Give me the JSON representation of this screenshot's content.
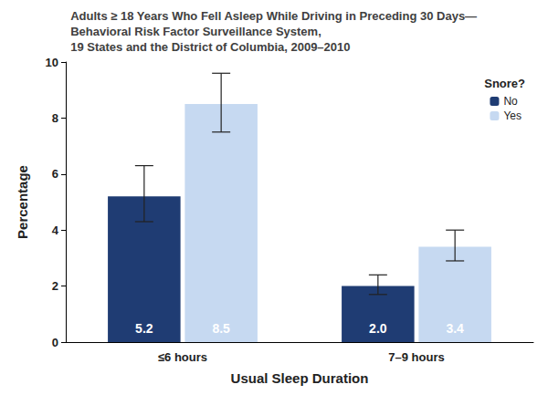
{
  "chart_data": {
    "type": "bar",
    "title": "Adults ≥ 18 Years Who Fell Asleep While Driving in Preceding 30 Days—\nBehavioral Risk Factor Surveillance System,\n19 States and the District of Columbia, 2009–2010",
    "categories": [
      "≤6 hours",
      "7–9 hours"
    ],
    "x_label": "Usual Sleep Duration",
    "y_label": "Percentage",
    "legend_title": "Snore?",
    "series": [
      {
        "name": "No",
        "color": "#1f3c73",
        "values": [
          5.2,
          2.0
        ],
        "value_labels": [
          "5.2",
          "2.0"
        ],
        "error_bars": [
          [
            4.3,
            6.3
          ],
          [
            1.7,
            2.4
          ]
        ]
      },
      {
        "name": "Yes",
        "color": "#c6d9f1",
        "values": [
          8.5,
          3.4
        ],
        "value_labels": [
          "8.5",
          "3.4"
        ],
        "error_bars": [
          [
            7.5,
            9.6
          ],
          [
            2.9,
            4.0
          ]
        ]
      }
    ],
    "ylim": [
      0,
      10
    ],
    "yticks": [
      0,
      2,
      4,
      6,
      8,
      10
    ],
    "grid": false,
    "legend": "upper right",
    "data_labels": true
  }
}
